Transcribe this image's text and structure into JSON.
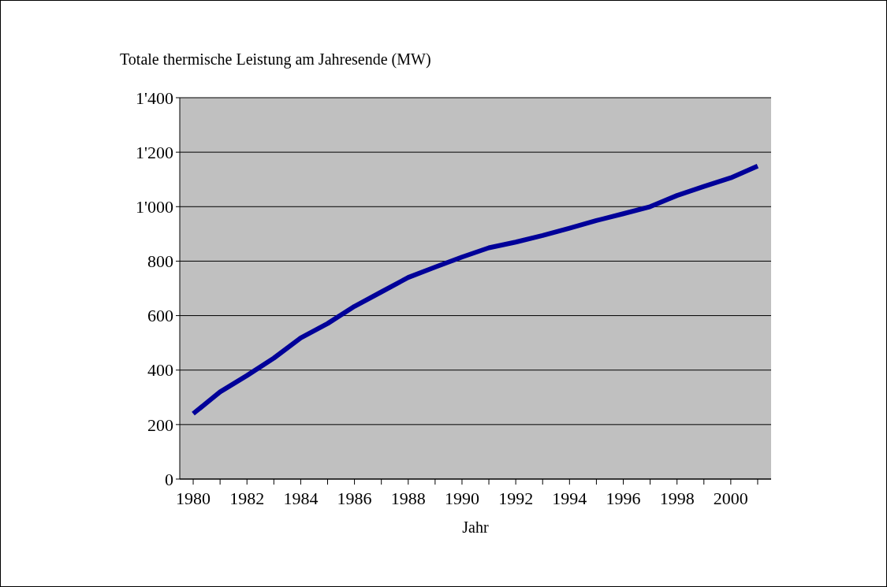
{
  "chart_data": {
    "type": "line",
    "title": "Totale thermische Leistung am Jahresende (MW)",
    "xlabel": "Jahr",
    "categories": [
      "1980",
      null,
      "1982",
      null,
      "1984",
      null,
      "1986",
      null,
      "1988",
      null,
      "1990",
      null,
      "1992",
      null,
      "1994",
      null,
      "1996",
      null,
      "1998",
      null,
      "2000",
      null
    ],
    "series": [
      {
        "color": "#000099",
        "values": [
          240,
          320,
          380,
          444,
          518,
          571,
          634,
          687,
          740,
          778,
          815,
          849,
          870,
          894,
          921,
          949,
          974,
          1000,
          1041,
          1074,
          1106,
          1149
        ]
      }
    ],
    "ylim": [
      0,
      1400
    ],
    "yticks": [
      0,
      200,
      400,
      600,
      800,
      {
        "value": 1000,
        "label": "1'000"
      },
      {
        "value": 1200,
        "label": "1'200"
      },
      {
        "value": 1400,
        "label": "1'400"
      }
    ],
    "grid": "y",
    "marker": "none",
    "line_style": "solid"
  }
}
